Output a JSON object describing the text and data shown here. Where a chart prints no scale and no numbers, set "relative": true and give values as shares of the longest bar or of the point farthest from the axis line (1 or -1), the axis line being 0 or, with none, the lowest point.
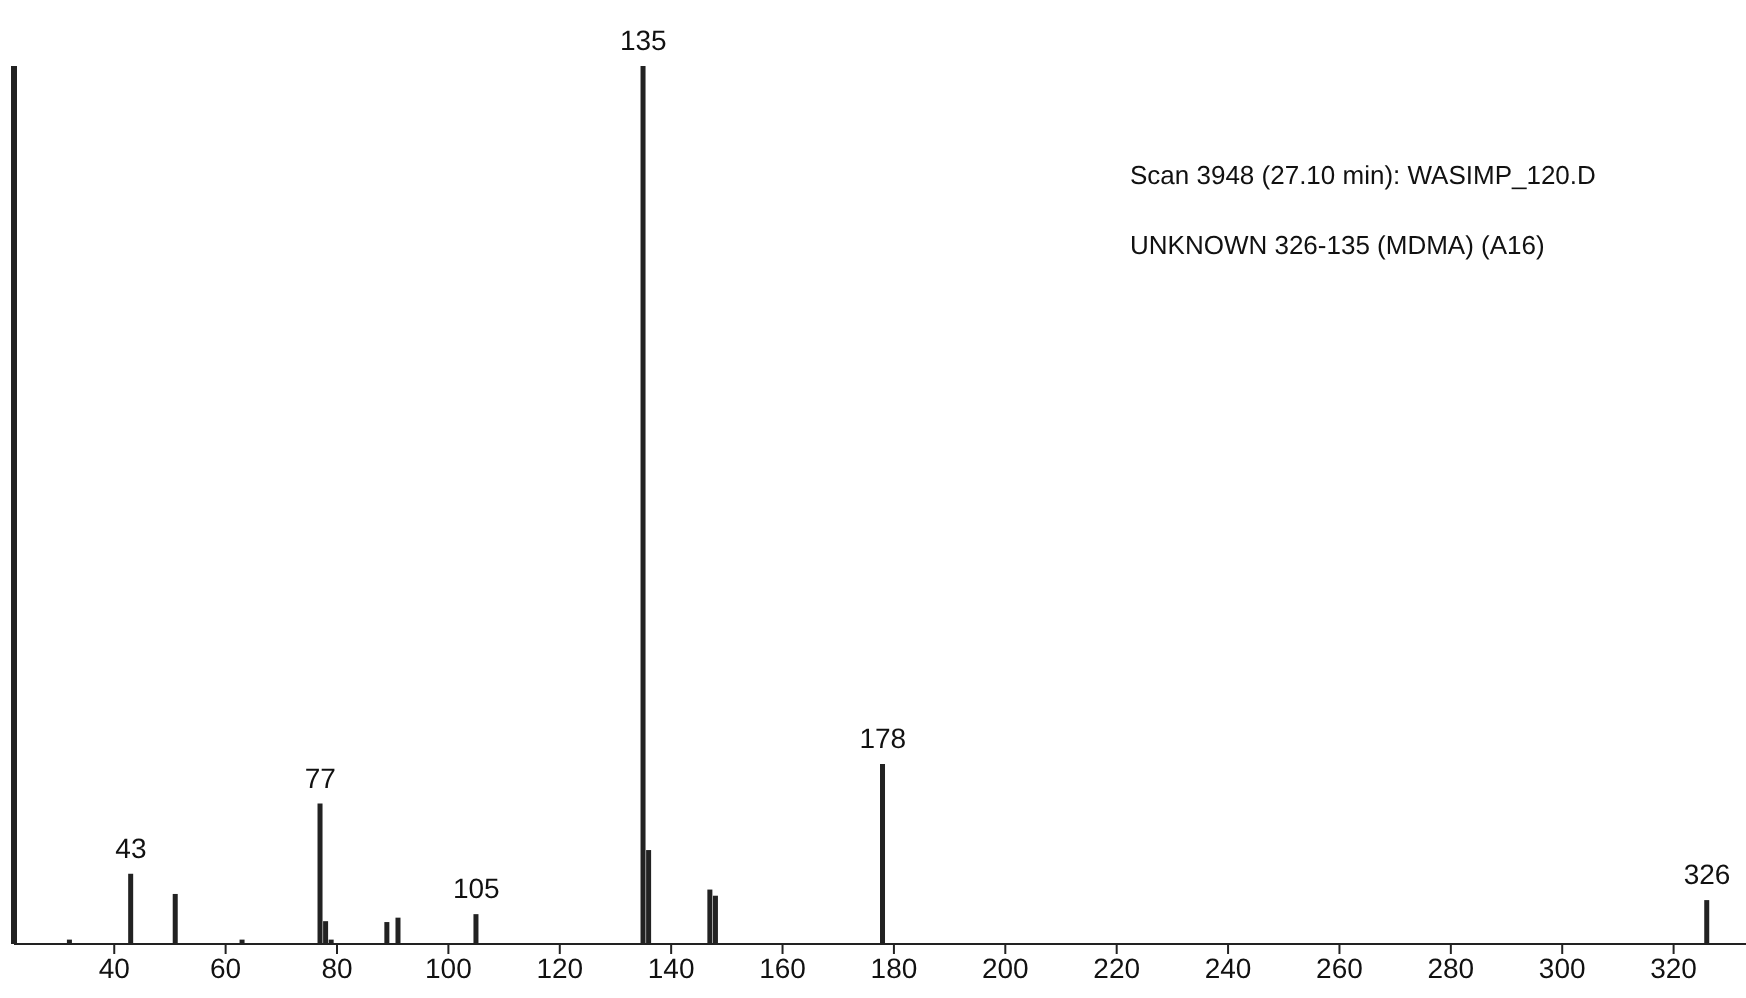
{
  "chart_data": {
    "type": "bar",
    "relative": true,
    "color": "#222222",
    "x": [
      32,
      43,
      51,
      63,
      77,
      78,
      79,
      89,
      91,
      105,
      135,
      136,
      147,
      148,
      178,
      326
    ],
    "values": [
      0.005,
      0.08,
      0.057,
      0.005,
      0.16,
      0.026,
      0.005,
      0.025,
      0.03,
      0.034,
      1,
      0.107,
      0.062,
      0.055,
      0.205,
      0.05
    ],
    "xlim": [
      22,
      333
    ],
    "xticks": [
      40,
      60,
      80,
      100,
      120,
      140,
      160,
      180,
      200,
      220,
      240,
      260,
      280,
      300,
      320
    ],
    "annotations": [
      "Scan 3948 (27.10 min): WASIMP_120.D",
      "UNKNOWN 326-135 (MDMA) (A16)",
      {
        "text": "43",
        "x": 43,
        "y": 0.08
      },
      {
        "text": "77",
        "x": 77,
        "y": 0.16
      },
      {
        "text": "105",
        "x": 105,
        "y": 0.034
      },
      {
        "text": "135",
        "x": 135,
        "y": 1
      },
      {
        "text": "178",
        "x": 178,
        "y": 0.205
      },
      {
        "text": "326",
        "x": 326,
        "y": 0.05
      }
    ],
    "grid": false,
    "legend": false
  }
}
